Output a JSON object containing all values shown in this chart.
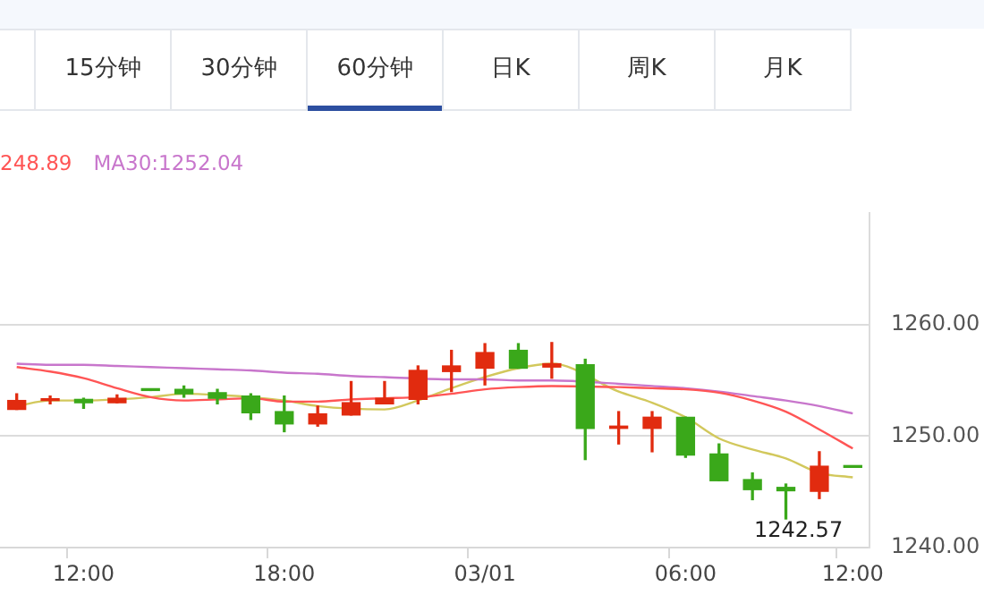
{
  "chart_data": {
    "type": "candlestick",
    "categories": [
      null,
      null,
      "12:00",
      null,
      null,
      null,
      null,
      null,
      "18:00",
      null,
      null,
      null,
      null,
      null,
      "03/01",
      null,
      null,
      null,
      null,
      null,
      "06:00",
      null,
      null,
      null,
      null,
      "12:00"
    ],
    "ohlc": [
      [
        1252.4,
        1253.8,
        1252.4,
        1253.2
      ],
      [
        1253.2,
        1253.6,
        1252.9,
        1253.3
      ],
      [
        1253.3,
        1253.4,
        1252.5,
        1253.0
      ],
      [
        1253.0,
        1253.7,
        1253.0,
        1253.4
      ],
      [
        1254.2,
        1254.2,
        1254.1,
        1254.1
      ],
      [
        1254.2,
        1254.5,
        1253.5,
        1253.8
      ],
      [
        1253.9,
        1254.2,
        1252.9,
        1253.4
      ],
      [
        1253.6,
        1253.8,
        1251.5,
        1252.1
      ],
      [
        1252.2,
        1253.6,
        1250.4,
        1251.1
      ],
      [
        1251.1,
        1252.7,
        1250.9,
        1252.0
      ],
      [
        1251.9,
        1254.9,
        1251.9,
        1253.0
      ],
      [
        1252.9,
        1254.9,
        1252.9,
        1253.4
      ],
      [
        1253.3,
        1256.3,
        1252.9,
        1255.9
      ],
      [
        1255.8,
        1257.7,
        1254.0,
        1256.3
      ],
      [
        1256.1,
        1258.3,
        1254.6,
        1257.5
      ],
      [
        1257.7,
        1258.3,
        1256.1,
        1256.1
      ],
      [
        1256.2,
        1258.4,
        1255.2,
        1256.5
      ],
      [
        1256.4,
        1256.9,
        1247.9,
        1250.7
      ],
      [
        1250.7,
        1252.2,
        1249.3,
        1250.9
      ],
      [
        1250.7,
        1252.2,
        1248.6,
        1251.7
      ],
      [
        1251.7,
        1251.7,
        1248.1,
        1248.3
      ],
      [
        1248.4,
        1249.3,
        1246.0,
        1246.0
      ],
      [
        1246.1,
        1246.7,
        1244.3,
        1245.2
      ],
      [
        1245.4,
        1245.7,
        1242.57,
        1245.1
      ],
      [
        1245.05,
        1248.6,
        1244.4,
        1247.3
      ],
      [
        1247.3,
        1247.3,
        1247.2,
        1247.2
      ]
    ],
    "colors": [
      "#e12b0f",
      "#e12b0f",
      "#3aa81a",
      "#e12b0f",
      "#3aa81a",
      "#3aa81a",
      "#3aa81a",
      "#3aa81a",
      "#3aa81a",
      "#e12b0f",
      "#e12b0f",
      "#e12b0f",
      "#e12b0f",
      "#e12b0f",
      "#e12b0f",
      "#3aa81a",
      "#e12b0f",
      "#3aa81a",
      "#e12b0f",
      "#e12b0f",
      "#3aa81a",
      "#3aa81a",
      "#3aa81a",
      "#3aa81a",
      "#e12b0f",
      "#3aa81a"
    ],
    "series": [
      {
        "type": "line",
        "name": "248.89",
        "color": "#ff5555",
        "values": [
          1256.2,
          1255.8,
          1255.2,
          1254.3,
          1253.5,
          1253.2,
          1253.3,
          1253.4,
          1253.1,
          1253.1,
          1253.3,
          1253.4,
          1253.5,
          1253.8,
          1254.2,
          1254.4,
          1254.5,
          null,
          1254.4,
          1254.3,
          1254.2,
          1253.9,
          1253.2,
          1252.2,
          1250.6,
          1248.89
        ]
      },
      {
        "type": "line",
        "name": "MA30:1252.04",
        "color": "#c876cc",
        "values": [
          1256.5,
          1256.4,
          1256.4,
          1256.3,
          1256.2,
          1256.1,
          1256.0,
          1255.9,
          1255.7,
          1255.6,
          1255.4,
          1255.3,
          null,
          1255.1,
          1255.1,
          1255.0,
          1255.0,
          null,
          1254.7,
          1254.5,
          1254.3,
          1254.0,
          1253.6,
          1253.2,
          1252.7,
          1252.04
        ]
      },
      {
        "type": "line",
        "color": "#d2c85c",
        "values": [
          1252.7,
          1253.2,
          1253.2,
          1253.3,
          1253.5,
          1253.8,
          1253.7,
          1253.5,
          1253.2,
          1252.7,
          null,
          1252.4,
          1253.2,
          1254.3,
          1255.3,
          1256.1,
          1256.5,
          null,
          1254.0,
          1253.0,
          1251.7,
          1249.8,
          1248.8,
          1248.0,
          1246.7,
          1246.3
        ]
      }
    ],
    "ylim": [
      1240,
      1270
    ],
    "yticks": [
      {
        "value": 1240,
        "label": "1240.00"
      },
      {
        "value": 1250,
        "label": "1250.00"
      },
      {
        "value": 1260,
        "label": "1260.00"
      }
    ],
    "annotations": [
      "15分钟",
      "30分钟",
      "60分钟",
      "日K",
      "周K",
      "月K",
      "1242.57"
    ],
    "grid": "y",
    "legend": "top left",
    "marker": "none",
    "line_style": "solid"
  }
}
